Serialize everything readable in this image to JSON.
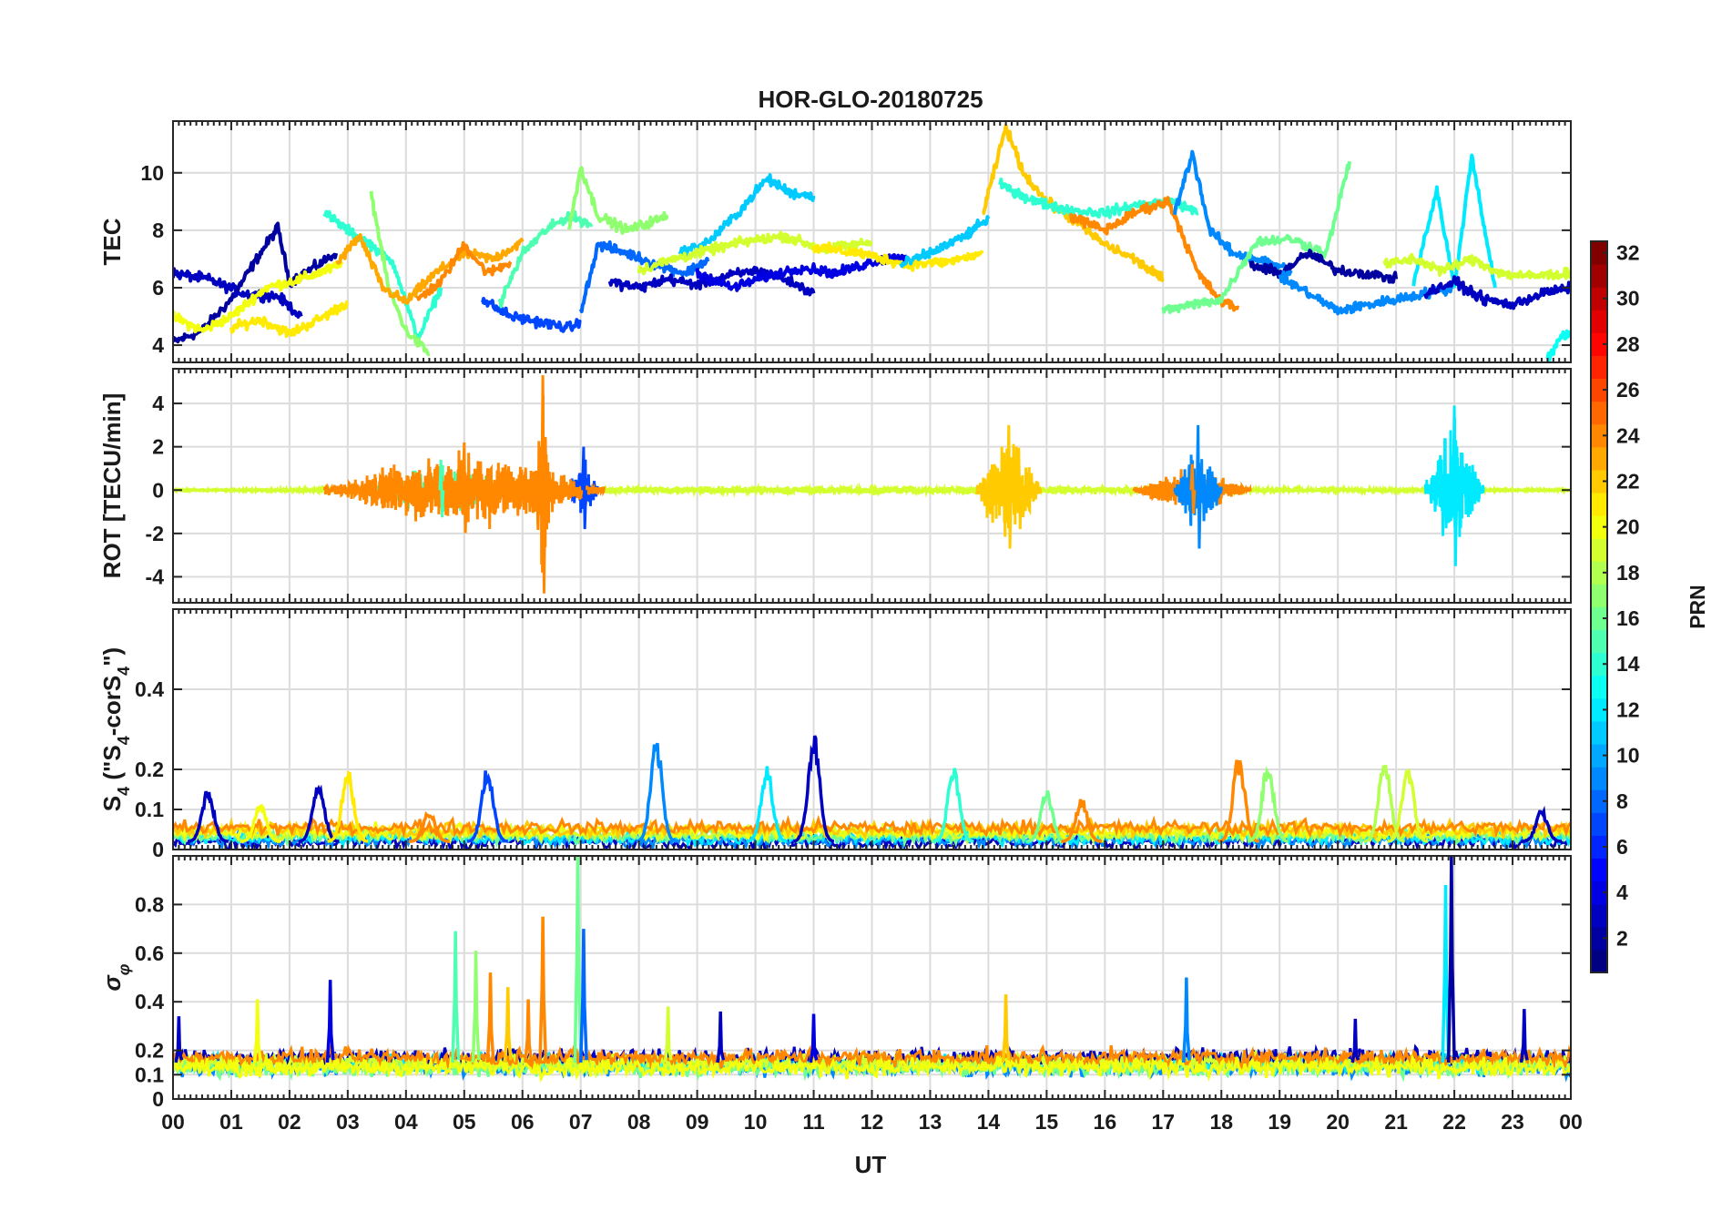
{
  "title": "HOR-GLO-20180725",
  "xlabel": "UT",
  "x_ticks": [
    "00",
    "01",
    "02",
    "03",
    "04",
    "05",
    "06",
    "07",
    "08",
    "09",
    "10",
    "11",
    "12",
    "13",
    "14",
    "15",
    "16",
    "17",
    "18",
    "19",
    "20",
    "21",
    "22",
    "23",
    "00"
  ],
  "colorbar": {
    "label": "PRN",
    "range": [
      1,
      32
    ],
    "ticks": [
      "2",
      "4",
      "6",
      "8",
      "10",
      "12",
      "14",
      "16",
      "18",
      "20",
      "22",
      "24",
      "26",
      "28",
      "30",
      "32"
    ],
    "colormap": "jet"
  },
  "chart_data": [
    {
      "type": "line",
      "panel": "TEC",
      "ylabel": "TEC",
      "xlim": [
        0,
        24
      ],
      "ylim": [
        3.4,
        11.8
      ],
      "y_ticks": [
        "4",
        "6",
        "8",
        "10"
      ],
      "grid": true,
      "series": [
        {
          "prn": 2,
          "x": [
            0,
            0.5,
            1,
            1.5,
            1.8,
            2,
            2.5,
            2.8
          ],
          "y": [
            4.1,
            4.5,
            5.6,
            7.2,
            8.1,
            6.2,
            6.8,
            7.2
          ]
        },
        {
          "prn": 3,
          "x": [
            0,
            0.6,
            1.2,
            1.8,
            2.2
          ],
          "y": [
            6.5,
            6.3,
            5.8,
            5.7,
            5.0
          ]
        },
        {
          "prn": 20,
          "x": [
            0,
            0.5,
            1,
            1.6,
            2.2,
            2.9
          ],
          "y": [
            5.0,
            4.5,
            5.0,
            6.0,
            6.3,
            6.8
          ]
        },
        {
          "prn": 21,
          "x": [
            1.0,
            1.5,
            2.0,
            2.6,
            3.0
          ],
          "y": [
            4.6,
            4.9,
            4.4,
            5.0,
            5.5
          ]
        },
        {
          "prn": 14,
          "x": [
            2.6,
            3.0,
            3.4,
            3.8,
            4.2,
            4.6
          ],
          "y": [
            8.6,
            8.0,
            7.5,
            6.8,
            4.2,
            6.0
          ]
        },
        {
          "prn": 17,
          "x": [
            3.4,
            3.7,
            4.0,
            4.4
          ],
          "y": [
            9.3,
            6.0,
            4.5,
            3.7
          ]
        },
        {
          "prn": 23,
          "x": [
            2.8,
            3.2,
            3.6,
            4.0,
            4.5,
            5.0,
            5.5,
            6.0
          ],
          "y": [
            6.8,
            7.8,
            6.0,
            5.5,
            6.5,
            7.2,
            7.0,
            7.6
          ]
        },
        {
          "prn": 24,
          "x": [
            4.2,
            4.6,
            5.0,
            5.4,
            5.8
          ],
          "y": [
            5.6,
            6.2,
            7.5,
            6.5,
            6.9
          ]
        },
        {
          "prn": 7,
          "x": [
            5.3,
            5.8,
            6.3,
            6.8,
            7.0
          ],
          "y": [
            5.6,
            5.0,
            4.8,
            4.6,
            4.8
          ]
        },
        {
          "prn": 15,
          "x": [
            5.6,
            6.0,
            6.4,
            6.8,
            7.2
          ],
          "y": [
            5.4,
            7.2,
            8.0,
            8.5,
            8.2
          ]
        },
        {
          "prn": 17,
          "x": [
            6.8,
            7.0,
            7.3,
            7.8,
            8.5
          ],
          "y": [
            8.0,
            10.2,
            8.5,
            8.0,
            8.5
          ]
        },
        {
          "prn": 8,
          "x": [
            7.0,
            7.3,
            7.8,
            8.3,
            8.8,
            9.2
          ],
          "y": [
            5.2,
            7.5,
            7.2,
            6.8,
            6.5,
            7.0
          ]
        },
        {
          "prn": 3,
          "x": [
            7.5,
            8.0,
            8.5,
            9.0,
            9.5,
            10.0,
            10.5,
            11.0
          ],
          "y": [
            6.2,
            6.0,
            6.3,
            6.1,
            6.4,
            6.6,
            6.3,
            5.8
          ]
        },
        {
          "prn": 11,
          "x": [
            8.7,
            9.2,
            9.7,
            10.2,
            10.6,
            11.0
          ],
          "y": [
            7.2,
            7.6,
            8.6,
            9.8,
            9.3,
            9.2
          ]
        },
        {
          "prn": 19,
          "x": [
            8.0,
            8.6,
            9.2,
            9.8,
            10.5,
            11.2,
            12.0
          ],
          "y": [
            6.6,
            7.0,
            7.3,
            7.6,
            7.8,
            7.3,
            7.6
          ]
        },
        {
          "prn": 4,
          "x": [
            9.0,
            9.6,
            10.2,
            10.8,
            11.4,
            12.0,
            12.6
          ],
          "y": [
            6.5,
            6.0,
            6.4,
            6.7,
            6.5,
            6.9,
            7.1
          ]
        },
        {
          "prn": 21,
          "x": [
            11.0,
            11.8,
            12.6,
            13.3,
            13.9
          ],
          "y": [
            7.4,
            7.2,
            6.8,
            6.9,
            7.2
          ]
        },
        {
          "prn": 11,
          "x": [
            12.5,
            13.0,
            13.6,
            14.0
          ],
          "y": [
            6.8,
            7.2,
            7.8,
            8.4
          ]
        },
        {
          "prn": 22,
          "x": [
            13.9,
            14.3,
            14.6,
            15.0,
            15.5,
            16.0,
            16.5,
            17.0
          ],
          "y": [
            8.5,
            11.6,
            10.0,
            9.0,
            8.3,
            7.5,
            7.0,
            6.3
          ]
        },
        {
          "prn": 14,
          "x": [
            14.2,
            14.8,
            15.4,
            16.0,
            16.6,
            17.2,
            17.6
          ],
          "y": [
            9.6,
            9.0,
            8.7,
            8.6,
            8.9,
            9.0,
            8.6
          ]
        },
        {
          "prn": 24,
          "x": [
            15.4,
            16.0,
            16.6,
            17.1,
            17.6,
            18.0,
            18.3
          ],
          "y": [
            8.5,
            8.0,
            8.7,
            9.0,
            6.5,
            5.5,
            5.3
          ]
        },
        {
          "prn": 9,
          "x": [
            17.2,
            17.5,
            17.8,
            18.2,
            18.6,
            19.2
          ],
          "y": [
            8.6,
            10.7,
            8.0,
            7.2,
            7.0,
            6.6
          ]
        },
        {
          "prn": 16,
          "x": [
            17.0,
            17.5,
            18.0,
            18.6,
            19.2,
            19.8,
            20.2
          ],
          "y": [
            5.2,
            5.4,
            5.6,
            7.6,
            7.7,
            7.2,
            10.4
          ]
        },
        {
          "prn": 2,
          "x": [
            18.5,
            19.0,
            19.5,
            20.0,
            20.5,
            21.0
          ],
          "y": [
            6.8,
            6.5,
            7.2,
            6.6,
            6.5,
            6.3
          ]
        },
        {
          "prn": 9,
          "x": [
            19.0,
            19.5,
            20.0,
            20.5,
            21.0,
            21.5,
            22.0
          ],
          "y": [
            6.4,
            5.8,
            5.2,
            5.4,
            5.6,
            5.8,
            6.0
          ]
        },
        {
          "prn": 12,
          "x": [
            21.3,
            21.7,
            22.0,
            22.3,
            22.7
          ],
          "y": [
            6.2,
            9.4,
            6.0,
            10.6,
            6.0
          ]
        },
        {
          "prn": 19,
          "x": [
            20.8,
            21.3,
            21.8,
            22.3,
            22.8,
            23.3,
            24.0
          ],
          "y": [
            6.8,
            7.0,
            6.6,
            7.0,
            6.5,
            6.4,
            6.5
          ]
        },
        {
          "prn": 3,
          "x": [
            21.5,
            22.0,
            22.5,
            23.0,
            23.5,
            24.0
          ],
          "y": [
            5.8,
            6.2,
            5.6,
            5.4,
            5.8,
            6.0
          ]
        },
        {
          "prn": 13,
          "x": [
            23.6,
            23.8,
            24.0
          ],
          "y": [
            3.5,
            4.2,
            4.5
          ]
        }
      ]
    },
    {
      "type": "line",
      "panel": "ROT",
      "ylabel": "ROT [TECU/min]",
      "xlim": [
        0,
        24
      ],
      "ylim": [
        -5.2,
        5.6
      ],
      "y_ticks": [
        "-4",
        "-2",
        "0",
        "2",
        "4"
      ],
      "grid": true,
      "bursts": [
        {
          "prn": 24,
          "x_start": 2.6,
          "x_end": 7.4,
          "amplitude": 2.2
        },
        {
          "prn": 24,
          "x_start": 6.2,
          "x_end": 6.5,
          "amplitude": 5.3
        },
        {
          "prn": 15,
          "x_start": 3.2,
          "x_end": 6.0,
          "amplitude": 1.4
        },
        {
          "prn": 7,
          "x_start": 6.8,
          "x_end": 7.3,
          "amplitude": 2.0
        },
        {
          "prn": 22,
          "x_start": 13.8,
          "x_end": 14.9,
          "amplitude": 3.0
        },
        {
          "prn": 9,
          "x_start": 17.2,
          "x_end": 18.0,
          "amplitude": 3.0
        },
        {
          "prn": 24,
          "x_start": 16.5,
          "x_end": 18.5,
          "amplitude": 1.2
        },
        {
          "prn": 12,
          "x_start": 21.5,
          "x_end": 22.5,
          "amplitude": 3.9
        },
        {
          "prn": 19,
          "x_start": 0.0,
          "x_end": 24.0,
          "amplitude": 0.25
        }
      ]
    },
    {
      "type": "line",
      "panel": "S4",
      "ylabel": "S_4 (\"S_4-corS_4\")",
      "xlim": [
        0,
        24
      ],
      "ylim": [
        0,
        0.6
      ],
      "y_ticks": [
        "0",
        "0.1",
        "0.2",
        "0.4"
      ],
      "grid": true,
      "peaks": [
        {
          "prn": 3,
          "x": 0.6,
          "y": 0.16
        },
        {
          "prn": 20,
          "x": 1.5,
          "y": 0.12
        },
        {
          "prn": 3,
          "x": 2.5,
          "y": 0.18
        },
        {
          "prn": 21,
          "x": 3.0,
          "y": 0.21
        },
        {
          "prn": 24,
          "x": 4.4,
          "y": 0.1
        },
        {
          "prn": 7,
          "x": 5.4,
          "y": 0.21
        },
        {
          "prn": 9,
          "x": 8.3,
          "y": 0.28
        },
        {
          "prn": 12,
          "x": 10.2,
          "y": 0.21
        },
        {
          "prn": 3,
          "x": 11.0,
          "y": 0.3
        },
        {
          "prn": 14,
          "x": 13.4,
          "y": 0.21
        },
        {
          "prn": 16,
          "x": 15.0,
          "y": 0.15
        },
        {
          "prn": 24,
          "x": 15.6,
          "y": 0.13
        },
        {
          "prn": 24,
          "x": 18.3,
          "y": 0.24
        },
        {
          "prn": 17,
          "x": 18.8,
          "y": 0.23
        },
        {
          "prn": 18,
          "x": 20.8,
          "y": 0.24
        },
        {
          "prn": 19,
          "x": 21.2,
          "y": 0.22
        },
        {
          "prn": 3,
          "x": 23.5,
          "y": 0.1
        }
      ]
    },
    {
      "type": "line",
      "panel": "sigma_phi",
      "ylabel": "σ_φ",
      "xlim": [
        0,
        24
      ],
      "ylim": [
        0,
        1.0
      ],
      "y_ticks": [
        "0",
        "0.1",
        "0.2",
        "0.4",
        "0.6",
        "0.8"
      ],
      "grid": true,
      "spikes": [
        {
          "prn": 3,
          "x": 0.1,
          "y": 0.34
        },
        {
          "prn": 20,
          "x": 1.45,
          "y": 0.41
        },
        {
          "prn": 4,
          "x": 2.7,
          "y": 0.49
        },
        {
          "prn": 15,
          "x": 4.85,
          "y": 0.69
        },
        {
          "prn": 17,
          "x": 5.2,
          "y": 0.61
        },
        {
          "prn": 24,
          "x": 5.45,
          "y": 0.52
        },
        {
          "prn": 22,
          "x": 5.75,
          "y": 0.46
        },
        {
          "prn": 24,
          "x": 6.1,
          "y": 0.41
        },
        {
          "prn": 24,
          "x": 6.35,
          "y": 0.75
        },
        {
          "prn": 16,
          "x": 6.95,
          "y": 1.0
        },
        {
          "prn": 8,
          "x": 7.05,
          "y": 0.7
        },
        {
          "prn": 19,
          "x": 8.5,
          "y": 0.38
        },
        {
          "prn": 3,
          "x": 9.4,
          "y": 0.36
        },
        {
          "prn": 4,
          "x": 11.0,
          "y": 0.35
        },
        {
          "prn": 22,
          "x": 14.3,
          "y": 0.43
        },
        {
          "prn": 9,
          "x": 17.4,
          "y": 0.5
        },
        {
          "prn": 3,
          "x": 20.3,
          "y": 0.33
        },
        {
          "prn": 12,
          "x": 21.85,
          "y": 0.88
        },
        {
          "prn": 2,
          "x": 21.95,
          "y": 1.0
        },
        {
          "prn": 3,
          "x": 23.2,
          "y": 0.37
        }
      ]
    }
  ]
}
